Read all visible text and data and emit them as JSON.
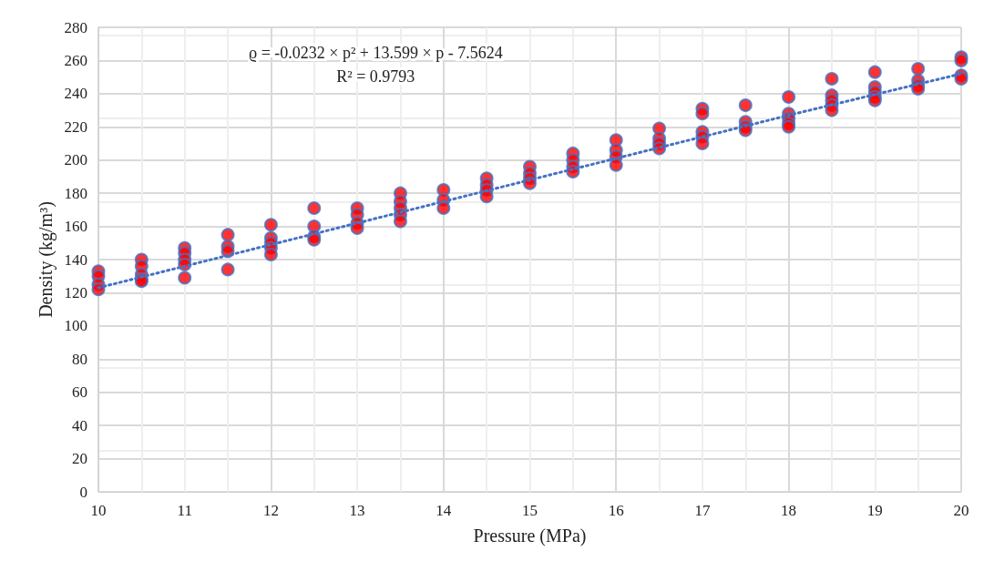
{
  "chart_data": {
    "type": "scatter",
    "xlabel": "Pressure (MPa)",
    "ylabel": "Density (kg/m³)",
    "xlim": [
      10,
      20
    ],
    "xticks": [
      10,
      11,
      12,
      13,
      14,
      15,
      16,
      17,
      18,
      19,
      20
    ],
    "ylim": [
      0,
      280
    ],
    "yticks": [
      0,
      20,
      40,
      60,
      80,
      100,
      120,
      140,
      160,
      180,
      200,
      220,
      240,
      260,
      280
    ],
    "grid": true,
    "marker": "circle",
    "annotations": [
      "ϱ = -0.0232 × p² + 13.599 × p - 7.5624",
      "R² = 0.9793"
    ],
    "series": [
      {
        "color": "#ff0000",
        "x": [
          10,
          10,
          10,
          10,
          10.5,
          10.5,
          10.5,
          10.5,
          10.5,
          11,
          11,
          11,
          11,
          11,
          11.5,
          11.5,
          11.5,
          11.5,
          12,
          12,
          12,
          12,
          12,
          12.5,
          12.5,
          12.5,
          12.5,
          13,
          13,
          13,
          13,
          13.5,
          13.5,
          13.5,
          13.5,
          13.5,
          14,
          14,
          14,
          14.5,
          14.5,
          14.5,
          14.5,
          15,
          15,
          15,
          15,
          15.5,
          15.5,
          15.5,
          15.5,
          16,
          16,
          16,
          16,
          16.5,
          16.5,
          16.5,
          16.5,
          17,
          17,
          17,
          17,
          17,
          17.5,
          17.5,
          17.5,
          17.5,
          18,
          18,
          18,
          18,
          18,
          18.5,
          18.5,
          18.5,
          18.5,
          18.5,
          19,
          19,
          19,
          19,
          19,
          19.5,
          19.5,
          19.5,
          19.5,
          20,
          20,
          20,
          20
        ],
        "values": [
          133,
          130,
          125,
          122,
          140,
          136,
          131,
          128,
          127,
          147,
          144,
          140,
          137,
          129,
          155,
          148,
          145,
          134,
          161,
          153,
          150,
          147,
          143,
          171,
          160,
          154,
          152,
          171,
          167,
          162,
          159,
          180,
          175,
          171,
          167,
          163,
          182,
          176,
          171,
          189,
          185,
          182,
          178,
          196,
          192,
          189,
          186,
          204,
          200,
          196,
          193,
          212,
          206,
          202,
          197,
          219,
          213,
          210,
          207,
          231,
          228,
          217,
          214,
          210,
          233,
          223,
          220,
          218,
          238,
          228,
          225,
          222,
          220,
          249,
          239,
          236,
          233,
          230,
          253,
          244,
          241,
          238,
          236,
          255,
          248,
          245,
          243,
          262,
          260,
          251,
          249
        ]
      },
      {
        "type": "line",
        "color": "#4472c4",
        "line_style": "dotted",
        "marker": "none",
        "x": [
          10,
          12,
          14,
          16,
          18,
          20
        ],
        "values": [
          123,
          149,
          175,
          201,
          227,
          252
        ]
      }
    ]
  }
}
